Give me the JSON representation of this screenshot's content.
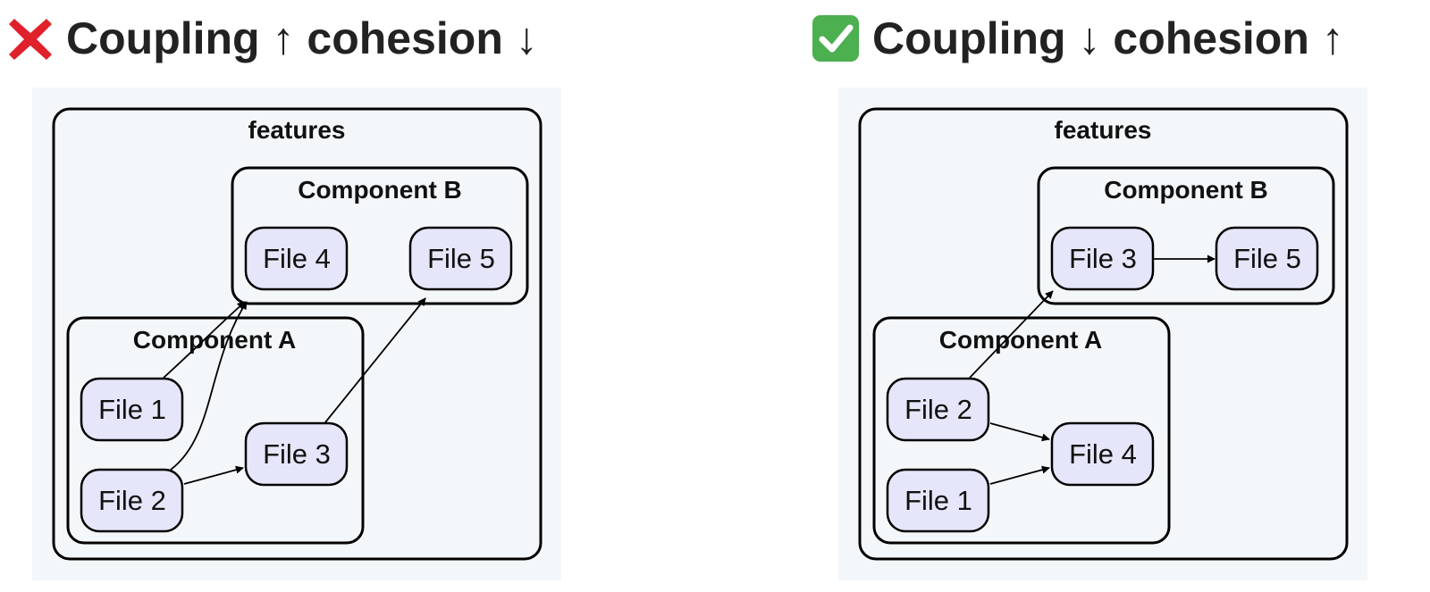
{
  "left_panel": {
    "icon": "red-cross-mark-icon",
    "title": "Coupling ↑ cohesion ↓",
    "diagram": {
      "clusters": {
        "outer": "features",
        "component_b": "Component B",
        "component_a": "Component A"
      },
      "nodes": {
        "n1": "File 4",
        "n2": "File 5",
        "n3": "File 1",
        "n4": "File 3",
        "n5": "File 2"
      },
      "edges": [
        {
          "from": "File 1",
          "to": "File 4"
        },
        {
          "from": "File 2",
          "to": "File 4"
        },
        {
          "from": "File 2",
          "to": "File 3"
        },
        {
          "from": "File 3",
          "to": "File 5"
        }
      ]
    }
  },
  "right_panel": {
    "icon": "green-check-mark-icon",
    "title": "Coupling ↓ cohesion ↑",
    "diagram": {
      "clusters": {
        "outer": "features",
        "component_b": "Component B",
        "component_a": "Component A"
      },
      "nodes": {
        "n1": "File 3",
        "n2": "File 5",
        "n3": "File 2",
        "n4": "File 4",
        "n5": "File 1"
      },
      "edges": [
        {
          "from": "File 3",
          "to": "File 5"
        },
        {
          "from": "File 2",
          "to": "File 3"
        },
        {
          "from": "File 2",
          "to": "File 4"
        },
        {
          "from": "File 1",
          "to": "File 4"
        }
      ]
    }
  },
  "colors": {
    "background": "#f4f7f9",
    "node_fill": "#e6e6fa",
    "stroke": "#000000",
    "cross": "#e0202a",
    "check": "#4caf50"
  }
}
